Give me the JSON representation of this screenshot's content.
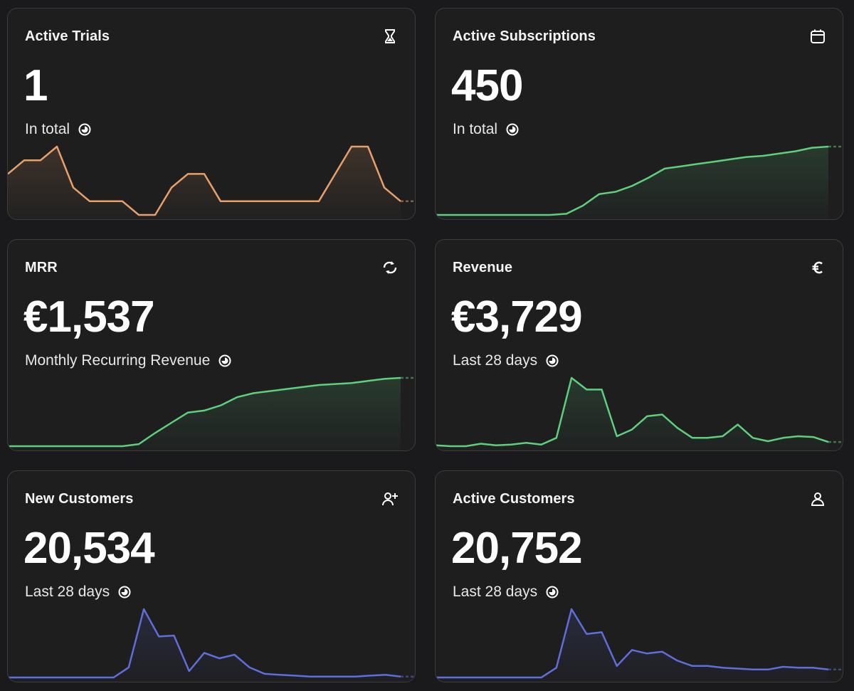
{
  "cards": [
    {
      "id": "active-trials",
      "title": "Active Trials",
      "value": "1",
      "subtitle": "In total",
      "icon": "hourglass-icon",
      "color": "#e8a06a",
      "chart": [
        2,
        3,
        3,
        4,
        1,
        0,
        0,
        0,
        -1,
        -1,
        1,
        2,
        2,
        0,
        0,
        0,
        0,
        0,
        0,
        0,
        2,
        4,
        4,
        1,
        0
      ]
    },
    {
      "id": "active-subscriptions",
      "title": "Active Subscriptions",
      "value": "450",
      "subtitle": "In total",
      "icon": "calendar-icon",
      "color": "#5fcf7e",
      "chart": [
        0,
        0,
        0,
        0,
        0,
        0,
        0,
        0,
        1,
        8,
        18,
        20,
        25,
        32,
        40,
        42,
        44,
        46,
        48,
        50,
        51,
        53,
        55,
        58,
        59
      ]
    },
    {
      "id": "mrr",
      "title": "MRR",
      "value": "€1,537",
      "subtitle": "Monthly Recurring Revenue",
      "icon": "sync-icon",
      "color": "#5fcf7e",
      "chart": [
        0,
        0,
        0,
        0,
        0,
        0,
        0,
        0,
        2,
        13,
        23,
        33,
        35,
        40,
        48,
        52,
        54,
        56,
        58,
        60,
        61,
        62,
        64,
        66,
        67
      ]
    },
    {
      "id": "revenue",
      "title": "Revenue",
      "value": "€3,729",
      "subtitle": "Last 28 days",
      "icon": "euro-icon",
      "color": "#5fcf7e",
      "chart": [
        1,
        0,
        0,
        3,
        1,
        2,
        4,
        2,
        10,
        82,
        68,
        68,
        12,
        20,
        36,
        38,
        22,
        10,
        10,
        12,
        26,
        10,
        6,
        10,
        12,
        11,
        5
      ]
    },
    {
      "id": "new-customers",
      "title": "New Customers",
      "value": "20,534",
      "subtitle": "Last 28 days",
      "icon": "add-user-icon",
      "color": "#5f6ed8",
      "chart": [
        1,
        1,
        1,
        1,
        1,
        1,
        1,
        1,
        12,
        76,
        46,
        47,
        8,
        28,
        22,
        26,
        12,
        5,
        4,
        3,
        2,
        2,
        2,
        2,
        3,
        4,
        2
      ]
    },
    {
      "id": "active-customers",
      "title": "Active Customers",
      "value": "20,752",
      "subtitle": "Last 28 days",
      "icon": "user-icon",
      "color": "#5f6ed8",
      "chart": [
        1,
        1,
        1,
        1,
        1,
        1,
        1,
        1,
        12,
        78,
        50,
        52,
        14,
        32,
        28,
        30,
        20,
        14,
        14,
        12,
        11,
        10,
        10,
        13,
        12,
        12,
        10
      ]
    }
  ]
}
